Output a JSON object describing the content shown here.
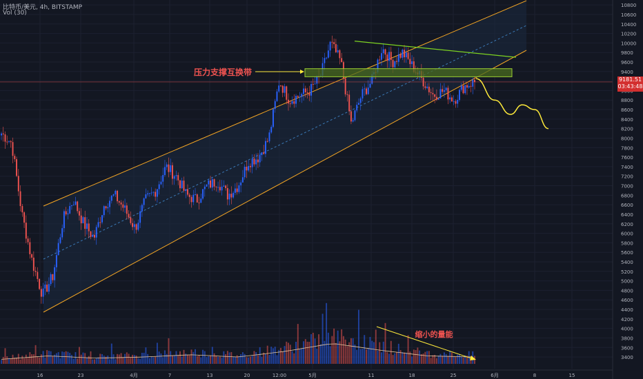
{
  "header": {
    "symbol_line": "比特币/美元, 4h, BITSTAMP",
    "volume_line": "Vol (30)"
  },
  "annotations": {
    "zone_label": "压力支撑互换带",
    "volume_label": "缩小的量能"
  },
  "price_tag": {
    "price": "9181.51",
    "countdown": "03:43:48"
  },
  "colors": {
    "background": "#131722",
    "up": "#2962ff",
    "down": "#ef5350",
    "channel": "#f5a623",
    "channel_fill": "#1b2a3f",
    "midline": "#3b7ab8",
    "resistance": "#7ed321",
    "zone_fill": "#4a6b1f",
    "zone_border": "#9acd32",
    "forecast": "#ffeb3b",
    "label": "#ef5350"
  },
  "chart_data": {
    "type": "candlestick",
    "series": [
      {
        "name": "BTC/USD",
        "values": [
          8100,
          7900,
          6400,
          5400,
          4700,
          5100,
          6300,
          6700,
          6200,
          5900,
          6600,
          6800,
          6500,
          6100,
          6700,
          6900,
          7400,
          7200,
          6800,
          6700,
          7000,
          7100,
          6800,
          7000,
          7500,
          7600,
          8000,
          9200,
          8800,
          8900,
          9000,
          9300,
          10000,
          9600,
          8300,
          8900,
          9200,
          9900,
          9600,
          9800,
          9500,
          9200,
          8900,
          9000,
          8800,
          9100,
          9181
        ]
      }
    ],
    "forecast": {
      "name": "",
      "values": [
        9250,
        8800,
        8500,
        8700,
        8600,
        8200
      ]
    },
    "x_ticks": [
      "16",
      "23",
      "4月",
      "7",
      "13",
      "20",
      "12:00",
      "5月",
      "11",
      "18",
      "25",
      "6月",
      "8",
      "15"
    ],
    "y_ticks": [
      10800,
      10600,
      10400,
      10200,
      10000,
      9800,
      9600,
      9400,
      9200,
      9000,
      8800,
      8600,
      8400,
      8200,
      8000,
      7800,
      7600,
      7400,
      7200,
      7000,
      6800,
      6600,
      6400,
      6200,
      6000,
      5800,
      5600,
      5400,
      5200,
      5000,
      4800,
      4600,
      4400,
      4200,
      4000,
      3800,
      3600,
      3400
    ],
    "ylim": [
      3300,
      10860
    ],
    "volume": {
      "name": "",
      "relative_peaks": [
        0.2,
        0.35,
        0.25,
        0.3,
        0.4,
        0.3,
        0.55,
        0.9,
        0.6,
        0.35,
        0.3
      ]
    },
    "current_price": 9181.51
  }
}
